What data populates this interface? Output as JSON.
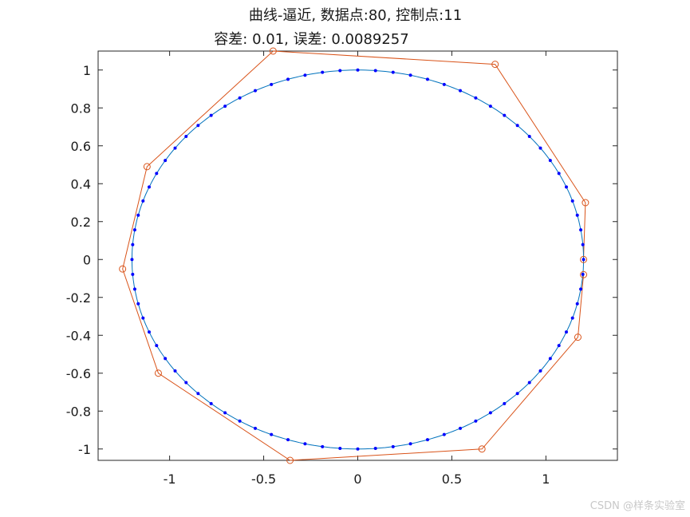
{
  "chart_data": {
    "type": "line",
    "title": "曲线-逼近, 数据点:80, 控制点:11",
    "subtitle": "容差: 0.01, 误差: 0.0089257",
    "xlim": [
      -1.38,
      1.38
    ],
    "ylim": [
      -1.06,
      1.1
    ],
    "xticks": [
      -1,
      -0.5,
      0,
      0.5,
      1
    ],
    "xtick_labels": [
      "-1",
      "-0.5",
      "0",
      "0.5",
      "1"
    ],
    "yticks": [
      1,
      0.8,
      0.6,
      0.4,
      0.2,
      0,
      -0.2,
      -0.4,
      -0.6,
      -0.8,
      -1
    ],
    "ytick_labels": [
      "1",
      "0.8",
      "0.6",
      "0.4",
      "0.2",
      "0",
      "-0.2",
      "-0.4",
      "-0.6",
      "-0.8",
      "-1"
    ],
    "grid": false,
    "ellipse": {
      "a": 1.2,
      "b": 1.0,
      "n_points": 80
    },
    "series": [
      {
        "role": "control-polygon",
        "color": "#d95319",
        "marker": "circle",
        "points": [
          [
            1.2,
            0.0
          ],
          [
            1.21,
            0.3
          ],
          [
            0.73,
            1.03
          ],
          [
            -0.45,
            1.1
          ],
          [
            -1.12,
            0.49
          ],
          [
            -1.25,
            -0.05
          ],
          [
            -1.06,
            -0.6
          ],
          [
            -0.36,
            -1.06
          ],
          [
            0.66,
            -1.0
          ],
          [
            1.17,
            -0.41
          ],
          [
            1.2,
            -0.08
          ]
        ]
      },
      {
        "role": "fitted-curve",
        "color": "#0072bd",
        "marker": "none"
      },
      {
        "role": "data-points",
        "color": "#0000ff",
        "marker": "dot"
      }
    ]
  },
  "watermark": "CSDN @样条实验室"
}
